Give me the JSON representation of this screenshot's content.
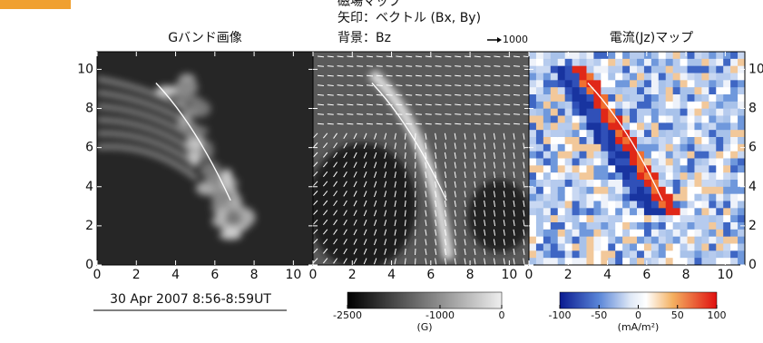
{
  "panels": [
    {
      "title": "Gバンド画像"
    },
    {
      "title_lines": [
        "磁場マップ",
        "矢印：ベクトル  (Bx, By)",
        "背景：Bz"
      ],
      "arrow_scale": "1000"
    },
    {
      "title": "電流(Jz)マップ"
    }
  ],
  "xlim": [
    0,
    11
  ],
  "ylim": [
    0,
    10.9
  ],
  "xticks": [
    0,
    2,
    4,
    6,
    8,
    10
  ],
  "yticks": [
    0,
    2,
    4,
    6,
    8,
    10
  ],
  "date": "30 Apr 2007 8:56-8:59UT",
  "colorbars": [
    {
      "lim": [
        -2500,
        0
      ],
      "ticks": [
        -2500,
        -1000,
        0
      ],
      "unit": "(G)"
    },
    {
      "lim": [
        -100,
        100
      ],
      "ticks": [
        -100,
        -50,
        0,
        50,
        100
      ],
      "unit": "(mA/m²)"
    }
  ]
}
